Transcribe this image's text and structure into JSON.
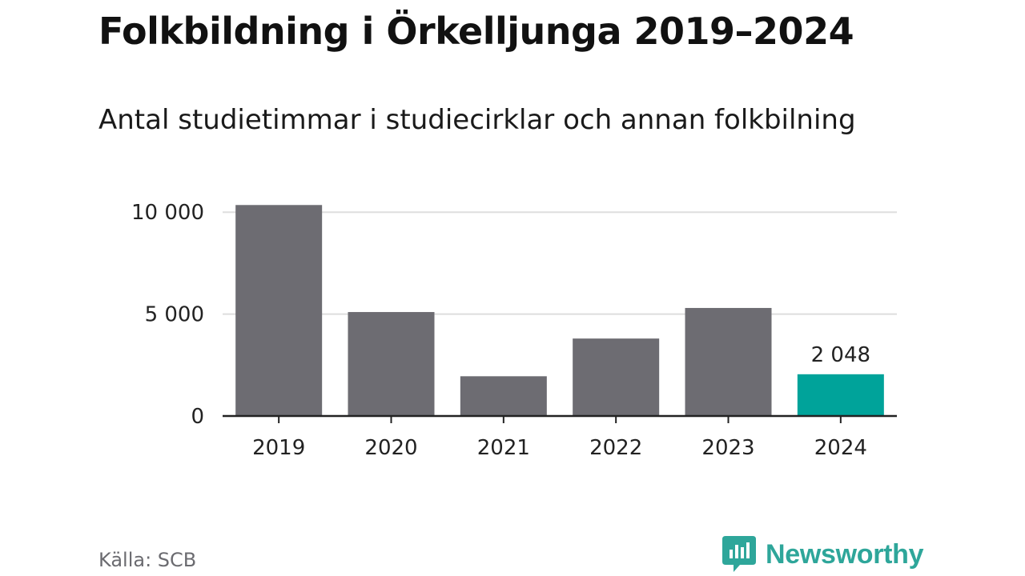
{
  "title": "Folkbildning i Örkelljunga 2019–2024",
  "subtitle": "Antal studietimmar i studiecirklar och annan folkbilning",
  "source": "Källa: SCB",
  "brand": {
    "name": "Newsworthy",
    "icon": "newsworthy-logo-icon",
    "color": "#2ea69a"
  },
  "colors": {
    "bar": "#6d6c72",
    "highlight": "#00a39a",
    "grid": "#dedede",
    "axis": "#222222",
    "text": "#222222"
  },
  "chart_data": {
    "type": "bar",
    "categories": [
      "2019",
      "2020",
      "2021",
      "2022",
      "2023",
      "2024"
    ],
    "values": [
      10350,
      5100,
      1950,
      3800,
      5300,
      2048
    ],
    "highlight_index": 5,
    "data_labels": [
      {
        "index": 5,
        "text": "2 048"
      }
    ],
    "yticks": [
      0,
      5000,
      10000
    ],
    "ytick_labels": [
      "0",
      "5 000",
      "10 000"
    ],
    "ylim": [
      0,
      10400
    ],
    "grid": true,
    "xlabel": "",
    "ylabel": ""
  }
}
